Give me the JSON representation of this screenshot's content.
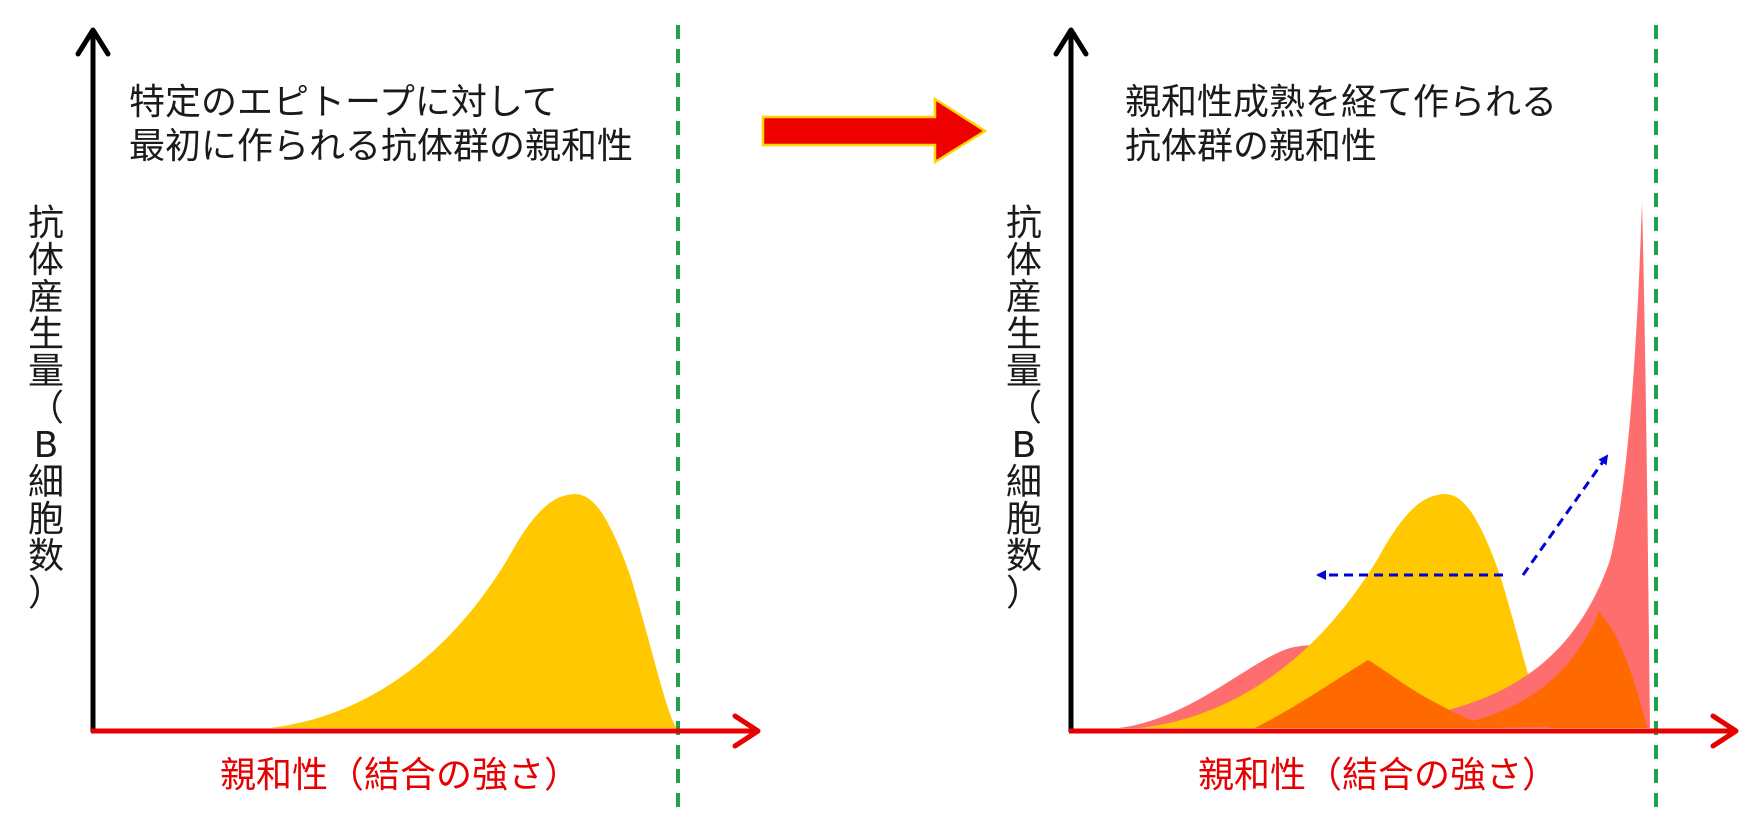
{
  "left_panel": {
    "title_lines": [
      "特定のエピトープに対して",
      "最初に作られる抗体群の親和性"
    ],
    "y_axis_label": "抗体産生量（B細胞数）",
    "x_axis_label": "親和性（結合の強さ）"
  },
  "right_panel": {
    "title_lines": [
      "親和性成熟を経て作られる",
      "抗体群の親和性"
    ],
    "y_axis_label": "抗体産生量（B細胞数）",
    "x_axis_label": "親和性（結合の強さ）"
  },
  "colors": {
    "axis_y": "#000000",
    "axis_x": "#e60000",
    "initial_distribution": "#ffc800",
    "matured_distribution": "#ff6e6e",
    "overlap": "#ff6a00",
    "limit_line": "#1fa34a",
    "transition_arrow": "#ee0000",
    "transition_arrow_outline": "#ffd400",
    "shift_arrows": "#0000dd"
  }
}
